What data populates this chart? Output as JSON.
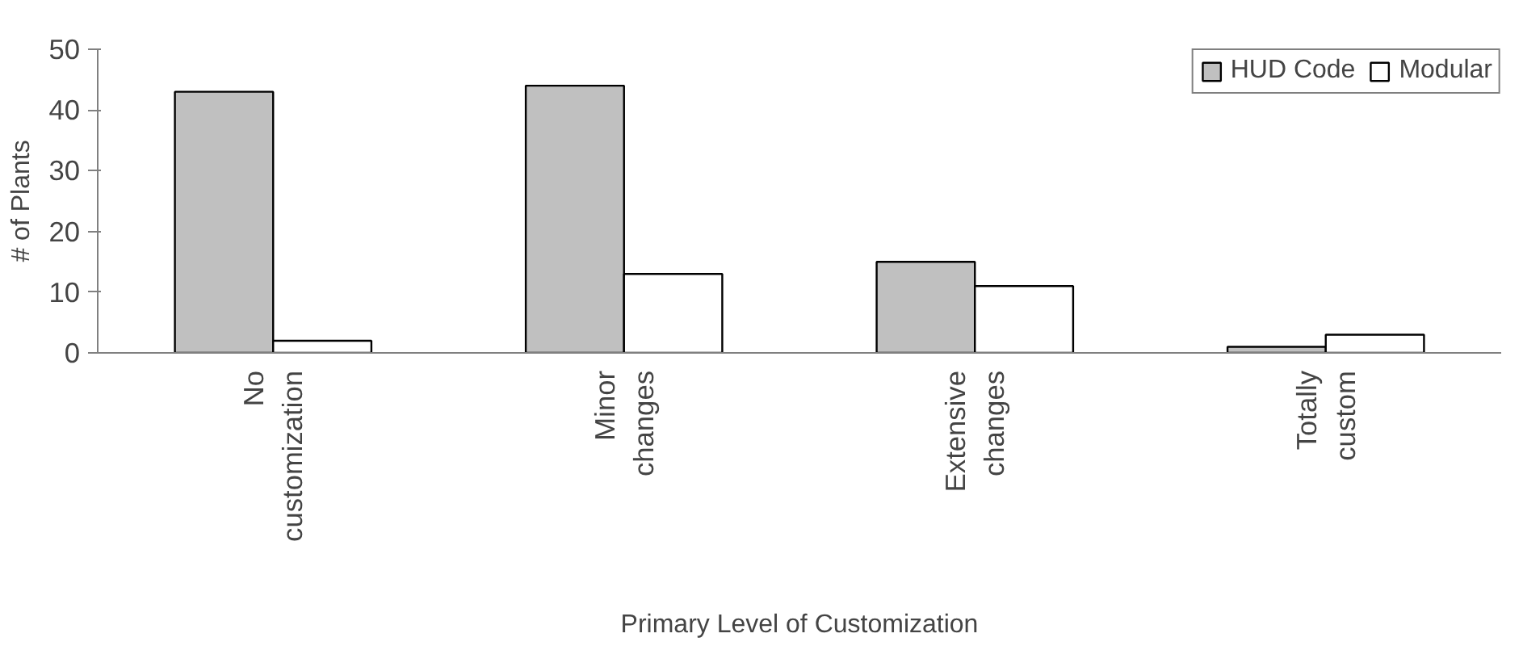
{
  "chart_data": {
    "type": "bar",
    "xlabel": "Primary Level of Customization",
    "ylabel": "# of Plants",
    "categories": [
      "No\ncustomization",
      "Minor\nchanges",
      "Extensive\nchanges",
      "Totally\ncustom"
    ],
    "series": [
      {
        "name": "HUD Code",
        "color": "#c0c0c0",
        "values": [
          43,
          44,
          15,
          1
        ]
      },
      {
        "name": "Modular",
        "color": "#ffffff",
        "values": [
          2,
          13,
          11,
          3
        ]
      }
    ],
    "ylim": [
      0,
      50
    ],
    "yticks": [
      0,
      10,
      20,
      30,
      40,
      50
    ],
    "grid": false,
    "legend": "top right"
  }
}
